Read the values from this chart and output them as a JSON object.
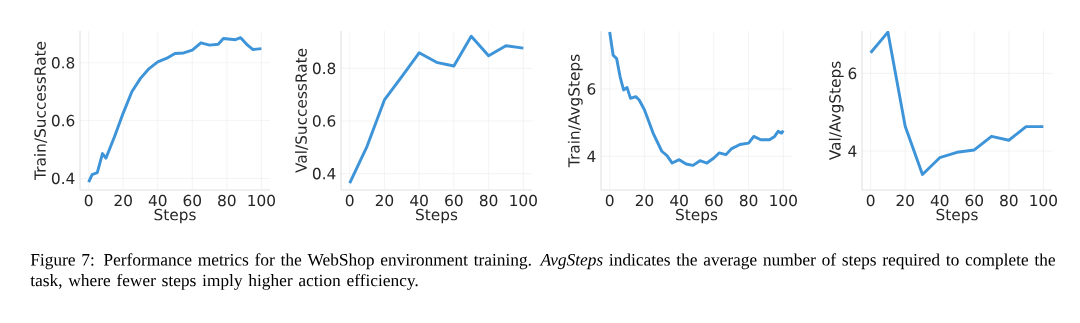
{
  "chart_data": [
    {
      "type": "line",
      "xlabel": "Steps",
      "ylabel": "Train/SuccessRate",
      "xlim": [
        -5,
        105
      ],
      "ylim": [
        0.36,
        0.91
      ],
      "xticks": [
        0,
        20,
        40,
        60,
        80,
        100
      ],
      "yticks": [
        0.4,
        0.6,
        0.8
      ],
      "grid": true,
      "color": "#3d94d8",
      "x": [
        0,
        2,
        5,
        8,
        10,
        15,
        20,
        25,
        30,
        35,
        40,
        45,
        50,
        55,
        60,
        65,
        70,
        75,
        78,
        85,
        88,
        92,
        95,
        100
      ],
      "values": [
        0.387,
        0.413,
        0.42,
        0.486,
        0.47,
        0.545,
        0.626,
        0.7,
        0.746,
        0.78,
        0.803,
        0.815,
        0.832,
        0.834,
        0.844,
        0.869,
        0.861,
        0.864,
        0.884,
        0.88,
        0.887,
        0.861,
        0.846,
        0.849
      ],
      "annotations": [
        "Figure 7: Performance metrics for the WebShop environment training. *AvgSteps* indicates the average number of steps required to complete the task, where fewer steps imply higher action efficiency."
      ]
    },
    {
      "type": "line",
      "xlabel": "Steps",
      "ylabel": "Val/SuccessRate",
      "xlim": [
        -5,
        105
      ],
      "ylim": [
        0.338,
        0.942
      ],
      "xticks": [
        0,
        20,
        40,
        60,
        80,
        100
      ],
      "yticks": [
        0.4,
        0.6,
        0.8
      ],
      "grid": true,
      "color": "#3d94d8",
      "x": [
        0,
        10,
        20,
        30,
        40,
        50,
        60,
        70,
        80,
        90,
        100
      ],
      "values": [
        0.364,
        0.504,
        0.68,
        0.769,
        0.859,
        0.823,
        0.809,
        0.922,
        0.848,
        0.886,
        0.877
      ]
    },
    {
      "type": "line",
      "xlabel": "Steps",
      "ylabel": "Train/AvgSteps",
      "xlim": [
        -5,
        105
      ],
      "ylim": [
        3.0,
        7.72
      ],
      "xticks": [
        0,
        20,
        40,
        60,
        80,
        100
      ],
      "yticks": [
        4,
        6
      ],
      "grid": true,
      "color": "#3d94d8",
      "x": [
        0,
        2,
        4,
        6,
        8,
        10,
        12,
        15,
        17,
        20,
        25,
        30,
        33,
        36,
        40,
        44,
        48,
        52,
        56,
        60,
        63,
        67,
        70,
        75,
        80,
        83,
        87,
        92,
        95,
        97,
        99,
        100
      ],
      "values": [
        7.69,
        7.0,
        6.9,
        6.36,
        5.97,
        6.04,
        5.72,
        5.77,
        5.67,
        5.38,
        4.69,
        4.15,
        4.02,
        3.8,
        3.9,
        3.77,
        3.73,
        3.87,
        3.8,
        3.95,
        4.1,
        4.05,
        4.22,
        4.35,
        4.39,
        4.59,
        4.49,
        4.49,
        4.59,
        4.74,
        4.69,
        4.76
      ]
    },
    {
      "type": "line",
      "xlabel": "Steps",
      "ylabel": "Val/AvgSteps",
      "xlim": [
        -5,
        105
      ],
      "ylim": [
        3.0,
        7.09
      ],
      "xticks": [
        0,
        20,
        40,
        60,
        80,
        100
      ],
      "yticks": [
        4,
        6
      ],
      "grid": true,
      "color": "#3d94d8",
      "x": [
        0,
        10,
        20,
        30,
        40,
        50,
        60,
        70,
        80,
        90,
        100
      ],
      "values": [
        6.53,
        7.06,
        4.64,
        3.4,
        3.83,
        3.97,
        4.03,
        4.38,
        4.28,
        4.63,
        4.63
      ]
    }
  ]
}
